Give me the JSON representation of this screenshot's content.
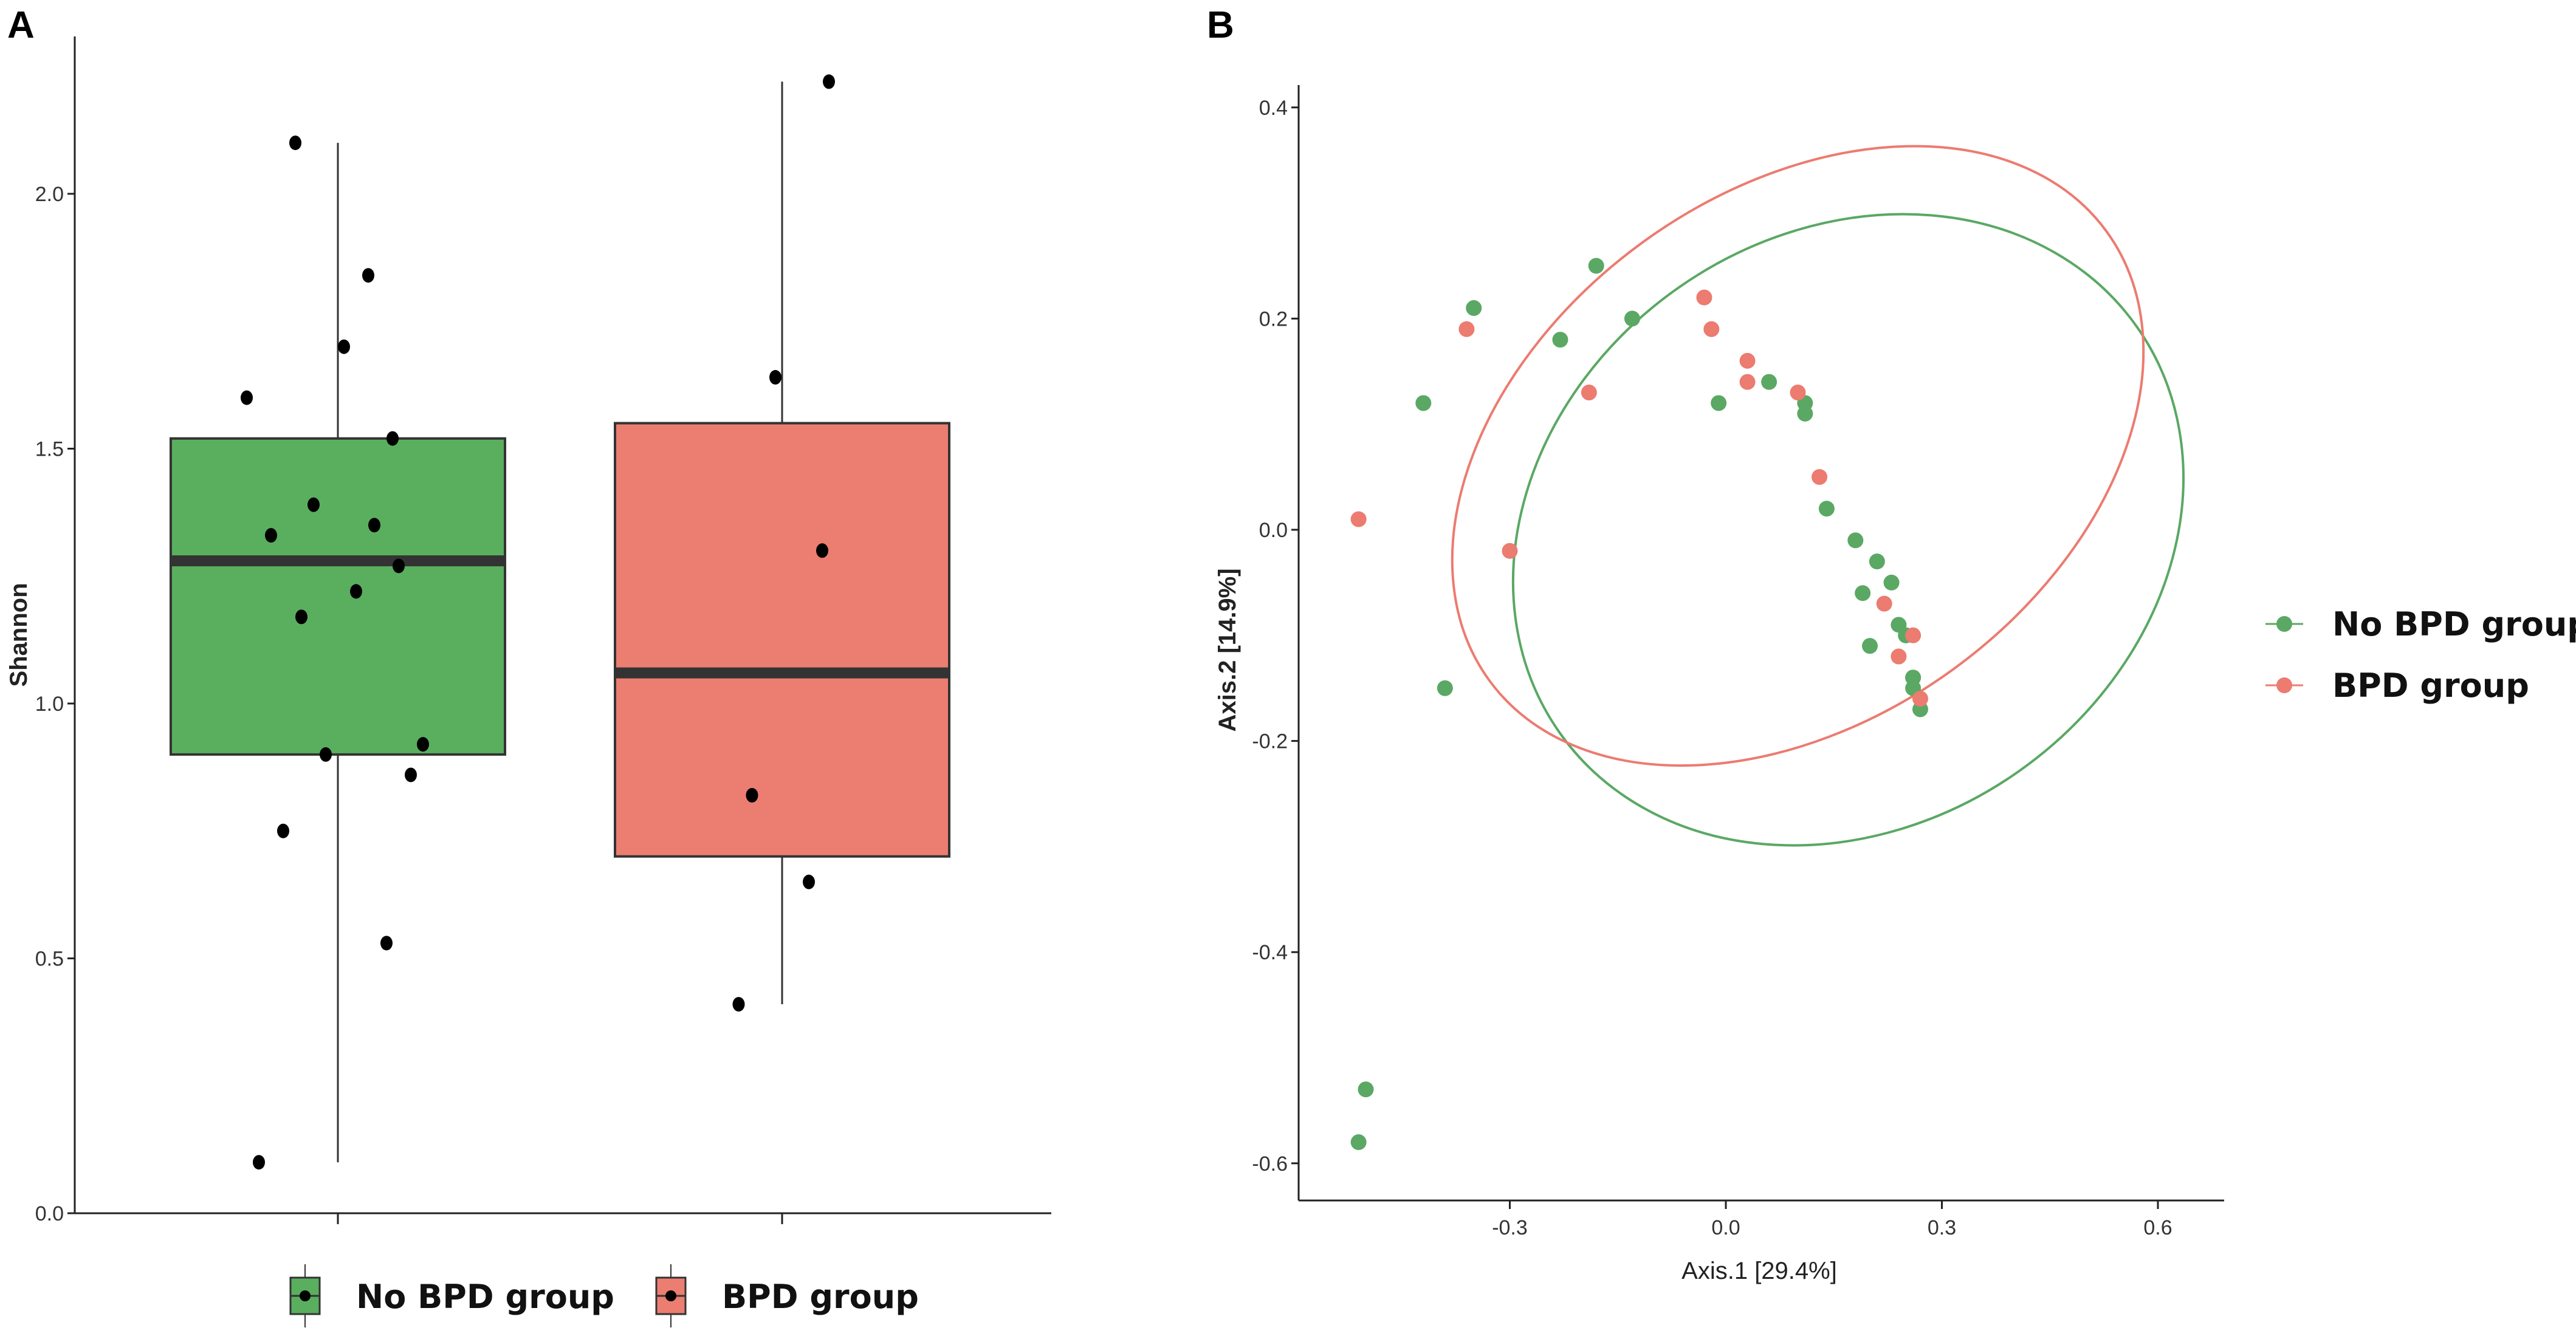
{
  "colors": {
    "no_bpd": "#5aa864",
    "no_bpd_box": "#5aaf5e",
    "bpd": "#ec7b70",
    "bpd_box": "#ec7d71",
    "median": "#333333",
    "point": "#000000",
    "axis": "#222222"
  },
  "chart_data": [
    {
      "panel": "A",
      "type": "box",
      "title": "",
      "xlabel": "",
      "ylabel": "Shannon",
      "ylim": [
        0,
        2.3
      ],
      "yticks": [
        0.0,
        0.5,
        1.0,
        1.5,
        2.0
      ],
      "ytick_labels": [
        "0.0",
        "0.5",
        "1.0",
        "1.5",
        "2.0"
      ],
      "legend": {
        "position": "bottom",
        "entries": [
          "No BPD group",
          "BPD group"
        ]
      },
      "groups": [
        {
          "name": "No BPD group",
          "stats": {
            "min": 0.1,
            "q1": 0.9,
            "median": 1.28,
            "q3": 1.52,
            "max": 2.1
          },
          "points": [
            0.1,
            0.53,
            0.75,
            0.86,
            0.9,
            0.92,
            1.17,
            1.22,
            1.27,
            1.33,
            1.35,
            1.39,
            1.52,
            1.6,
            1.7,
            1.84,
            2.1
          ]
        },
        {
          "name": "BPD group",
          "stats": {
            "min": 0.41,
            "q1": 0.7,
            "median": 1.06,
            "q3": 1.55,
            "max": 2.22
          },
          "points": [
            0.41,
            0.65,
            0.82,
            1.3,
            1.64,
            2.22
          ]
        }
      ]
    },
    {
      "panel": "B",
      "type": "scatter",
      "title": "",
      "xlabel": "Axis.1   [29.4%]",
      "ylabel": "Axis.2   [14.9%]",
      "xlim": [
        -0.57,
        0.7
      ],
      "ylim": [
        -0.63,
        0.43
      ],
      "xticks": [
        -0.3,
        0.0,
        0.3,
        0.6
      ],
      "xtick_labels": [
        "-0.3",
        "0.0",
        "0.3",
        "0.6"
      ],
      "yticks": [
        -0.6,
        -0.4,
        -0.2,
        0.0,
        0.2,
        0.4
      ],
      "ytick_labels": [
        "-0.6",
        "-0.4",
        "-0.2",
        "0.0",
        "0.2",
        "0.4"
      ],
      "legend": {
        "position": "right",
        "entries": [
          "No BPD group",
          "BPD group"
        ]
      },
      "series": [
        {
          "name": "No BPD group",
          "x": [
            -0.51,
            -0.5,
            -0.42,
            -0.39,
            -0.35,
            -0.23,
            -0.18,
            -0.13,
            -0.01,
            0.06,
            0.11,
            0.11,
            0.14,
            0.18,
            0.19,
            0.2,
            0.21,
            0.23,
            0.24,
            0.25,
            0.25,
            0.26,
            0.26,
            0.27,
            0.26
          ],
          "y": [
            -0.58,
            -0.53,
            0.12,
            -0.15,
            0.21,
            0.18,
            0.25,
            0.2,
            0.12,
            0.14,
            0.12,
            0.11,
            0.02,
            -0.01,
            -0.06,
            -0.11,
            -0.03,
            -0.05,
            -0.09,
            -0.1,
            -0.1,
            -0.14,
            -0.14,
            -0.17,
            -0.15
          ]
        },
        {
          "name": "BPD group",
          "x": [
            -0.51,
            -0.36,
            -0.3,
            -0.19,
            -0.03,
            -0.02,
            0.03,
            0.03,
            0.1,
            0.13,
            0.22,
            0.24,
            0.26,
            0.27
          ],
          "y": [
            0.01,
            0.19,
            -0.02,
            0.13,
            0.22,
            0.19,
            0.16,
            0.14,
            0.13,
            0.05,
            -0.07,
            -0.12,
            -0.1,
            -0.16
          ]
        }
      ],
      "ellipses": [
        {
          "name": "No BPD group",
          "center": [
            0.17,
            0.0
          ],
          "semi_axes": [
            0.49,
            0.28
          ],
          "rotation_deg": -35
        },
        {
          "name": "BPD group",
          "center": [
            0.1,
            0.07
          ],
          "semi_axes": [
            0.53,
            0.25
          ],
          "rotation_deg": -36
        }
      ]
    }
  ]
}
